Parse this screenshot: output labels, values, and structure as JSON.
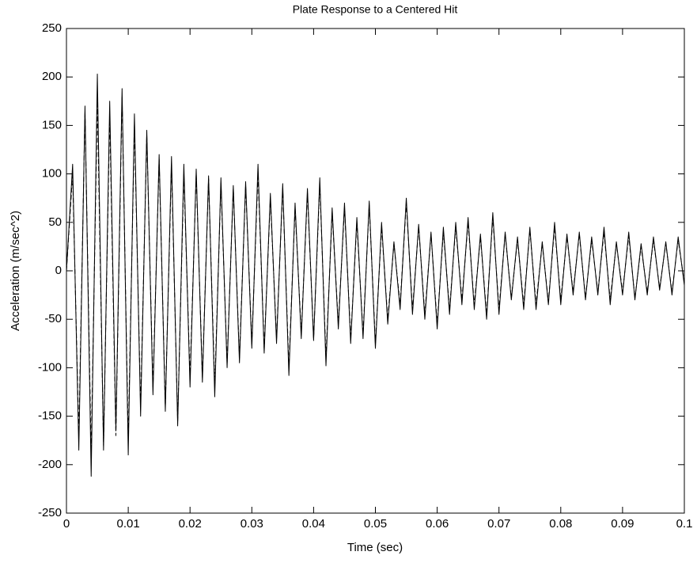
{
  "chart_data": {
    "type": "line",
    "title": "Plate Response to a Centered Hit",
    "x_label": "Time (sec)",
    "y_label": "Acceleration (m/sec^2)",
    "xlim": [
      0,
      0.1
    ],
    "ylim": [
      -250,
      250
    ],
    "xticks": [
      0,
      0.01,
      0.02,
      0.03,
      0.04,
      0.05,
      0.06,
      0.07,
      0.08,
      0.09,
      0.1
    ],
    "yticks": [
      -250,
      -200,
      -150,
      -100,
      -50,
      0,
      50,
      100,
      150,
      200,
      250
    ],
    "grid": false,
    "x": [
      0,
      0.001,
      0.002,
      0.003,
      0.004,
      0.005,
      0.006,
      0.007,
      0.008,
      0.009,
      0.01,
      0.011,
      0.012,
      0.013,
      0.014,
      0.015,
      0.016,
      0.017,
      0.018,
      0.019,
      0.02,
      0.021,
      0.022,
      0.023,
      0.024,
      0.025,
      0.026,
      0.027,
      0.028,
      0.029,
      0.03,
      0.031,
      0.032,
      0.033,
      0.034,
      0.035,
      0.036,
      0.037,
      0.038,
      0.039,
      0.04,
      0.041,
      0.042,
      0.043,
      0.044,
      0.045,
      0.046,
      0.047,
      0.048,
      0.049,
      0.05,
      0.051,
      0.052,
      0.053,
      0.054,
      0.055,
      0.056,
      0.057,
      0.058,
      0.059,
      0.06,
      0.061,
      0.062,
      0.063,
      0.064,
      0.065,
      0.066,
      0.067,
      0.068,
      0.069,
      0.07,
      0.071,
      0.072,
      0.073,
      0.074,
      0.075,
      0.076,
      0.077,
      0.078,
      0.079,
      0.08,
      0.081,
      0.082,
      0.083,
      0.084,
      0.085,
      0.086,
      0.087,
      0.088,
      0.089,
      0.09,
      0.091,
      0.092,
      0.093,
      0.094,
      0.095,
      0.096,
      0.097,
      0.098,
      0.099,
      0.1
    ],
    "series": [
      {
        "color": "#000000",
        "line_style": "solid",
        "values": [
          0,
          110,
          -185,
          170,
          -212,
          203,
          -185,
          175,
          -165,
          188,
          -190,
          162,
          -150,
          145,
          -128,
          120,
          -145,
          118,
          -160,
          110,
          -120,
          105,
          -115,
          98,
          -130,
          96,
          -100,
          88,
          -95,
          92,
          -80,
          110,
          -85,
          80,
          -75,
          90,
          -108,
          70,
          -70,
          85,
          -72,
          96,
          -98,
          65,
          -60,
          70,
          -75,
          55,
          -70,
          72,
          -80,
          50,
          -55,
          30,
          -40,
          75,
          -45,
          48,
          -50,
          40,
          -60,
          45,
          -45,
          50,
          -35,
          55,
          -40,
          38,
          -50,
          60,
          -45,
          40,
          -30,
          35,
          -40,
          45,
          -40,
          30,
          -35,
          50,
          -35,
          38,
          -25,
          40,
          -30,
          35,
          -25,
          45,
          -35,
          30,
          -25,
          40,
          -30,
          28,
          -25,
          35,
          -20,
          30,
          -25,
          35,
          -15
        ]
      },
      {
        "color": "#000000",
        "line_style": "dashed",
        "values": [
          0,
          100,
          -170,
          165,
          -190,
          175,
          -180,
          160,
          -170,
          180,
          -175,
          150,
          -140,
          140,
          -120,
          115,
          -140,
          110,
          -155,
          100,
          -110,
          100,
          -110,
          95,
          -120,
          90,
          -95,
          85,
          -90,
          88,
          -75,
          100,
          -80,
          75,
          -70,
          85,
          -100,
          65,
          -65,
          80,
          -70,
          90,
          -90,
          60,
          -55,
          65,
          -70,
          50,
          -65,
          68,
          -75,
          45,
          -50,
          28,
          -35,
          70,
          -40,
          45,
          -45,
          38,
          -55,
          40,
          -40,
          45,
          -30,
          50,
          -35,
          35,
          -45,
          55,
          -40,
          38,
          -28,
          32,
          -35,
          42,
          -35,
          28,
          -32,
          45,
          -30,
          35,
          -22,
          38,
          -28,
          32,
          -22,
          40,
          -30,
          28,
          -22,
          36,
          -28,
          25,
          -22,
          32,
          -18,
          28,
          -22,
          32,
          -12
        ]
      }
    ]
  }
}
